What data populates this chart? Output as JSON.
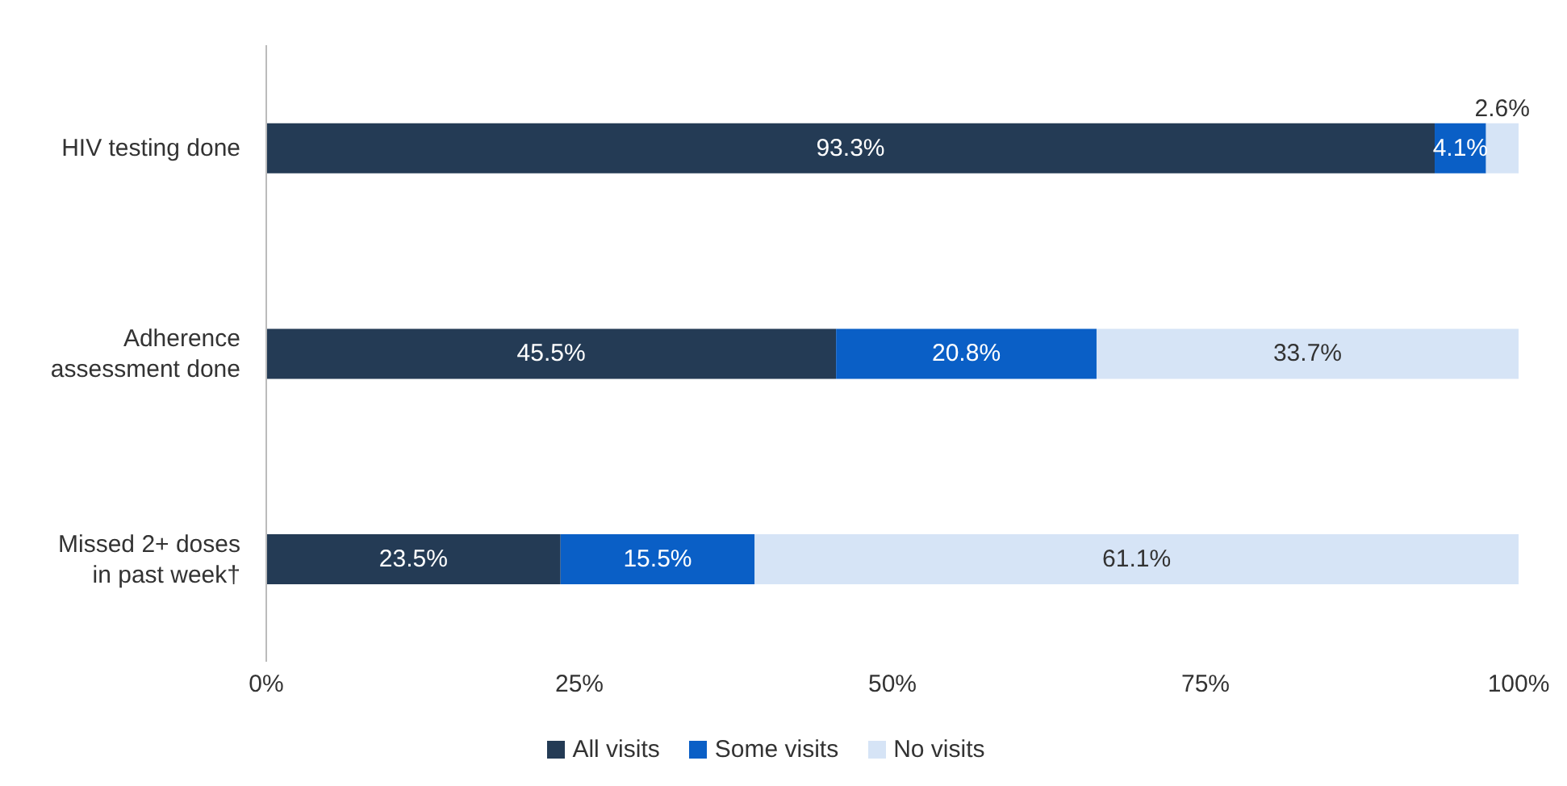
{
  "chart_data": {
    "type": "bar",
    "orientation": "horizontal",
    "stacked": true,
    "categories": [
      "HIV testing done",
      "Adherence assessment done",
      "Missed 2+ doses in past week†"
    ],
    "series": [
      {
        "name": "All visits",
        "color": "#243b55",
        "values": [
          93.3,
          45.5,
          23.5
        ],
        "value_labels": [
          "93.3%",
          "45.5%",
          "23.5%"
        ]
      },
      {
        "name": "Some visits",
        "color": "#0a5fc6",
        "values": [
          4.1,
          20.8,
          15.5
        ],
        "value_labels": [
          "4.1%",
          "20.8%",
          "15.5%"
        ]
      },
      {
        "name": "No visits",
        "color": "#d6e4f6",
        "values": [
          2.6,
          33.7,
          61.1
        ],
        "value_labels": [
          "2.6%",
          "33.7%",
          "61.1%"
        ]
      }
    ],
    "xlim": [
      0,
      100
    ],
    "xticks": [
      {
        "value": 0,
        "label": "0%"
      },
      {
        "value": 25,
        "label": "25%"
      },
      {
        "value": 50,
        "label": "50%"
      },
      {
        "value": 75,
        "label": "75%"
      },
      {
        "value": 100,
        "label": "100%"
      }
    ],
    "grid": false,
    "legend": "bottom"
  }
}
